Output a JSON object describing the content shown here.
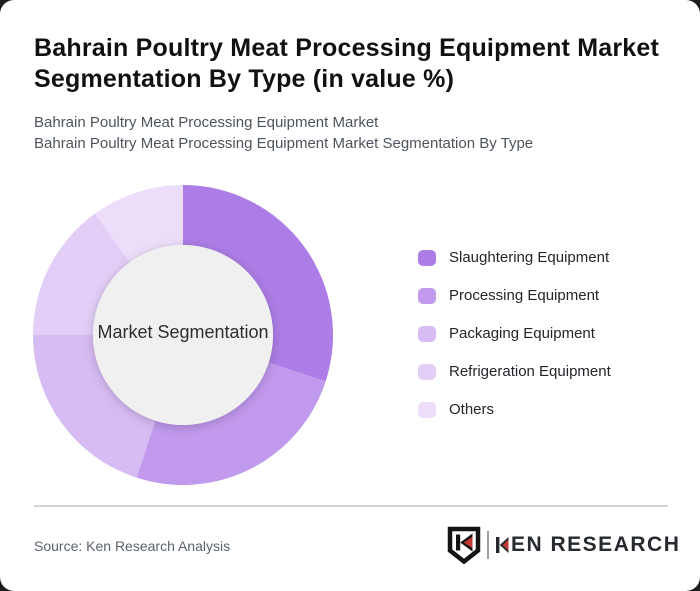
{
  "page": {
    "background_color": "#1d1d1f",
    "card_color": "#ffffff",
    "title_line1": "Bahrain Poultry Meat Processing Equipment Market",
    "title_line2": "Segmentation By Type (in value %)",
    "subtitle_line1": "Bahrain Poultry Meat Processing Equipment Market",
    "subtitle_line2": "Bahrain Poultry Meat Processing Equipment Market Segmentation By Type"
  },
  "chart_data": {
    "type": "pie",
    "variant": "donut",
    "title": "Bahrain Poultry Meat Processing Equipment Market Segmentation By Type (in value %)",
    "center_label": "Market Segmentation",
    "unit": "% of value (estimated from arc angles; no numeric labels shown)",
    "categories": [
      "Slaughtering Equipment",
      "Processing Equipment",
      "Packaging Equipment",
      "Refrigeration Equipment",
      "Others"
    ],
    "values": [
      30,
      25,
      20,
      15,
      10
    ],
    "colors": [
      "#ac7de6",
      "#c199ed",
      "#d7bbf3",
      "#e2cef7",
      "#ecdefa"
    ],
    "start_angle": "12 o'clock",
    "direction": "clockwise",
    "hole_fill": "#f0f0f0",
    "legend_position": "right"
  },
  "footer": {
    "source_label": "Source: Ken Research Analysis",
    "logo": {
      "wordmark": "KEN RESEARCH",
      "wordmark_suffix": "EN RESEARCH",
      "accent_color": "#c43a36",
      "text_color": "#26292d"
    }
  }
}
